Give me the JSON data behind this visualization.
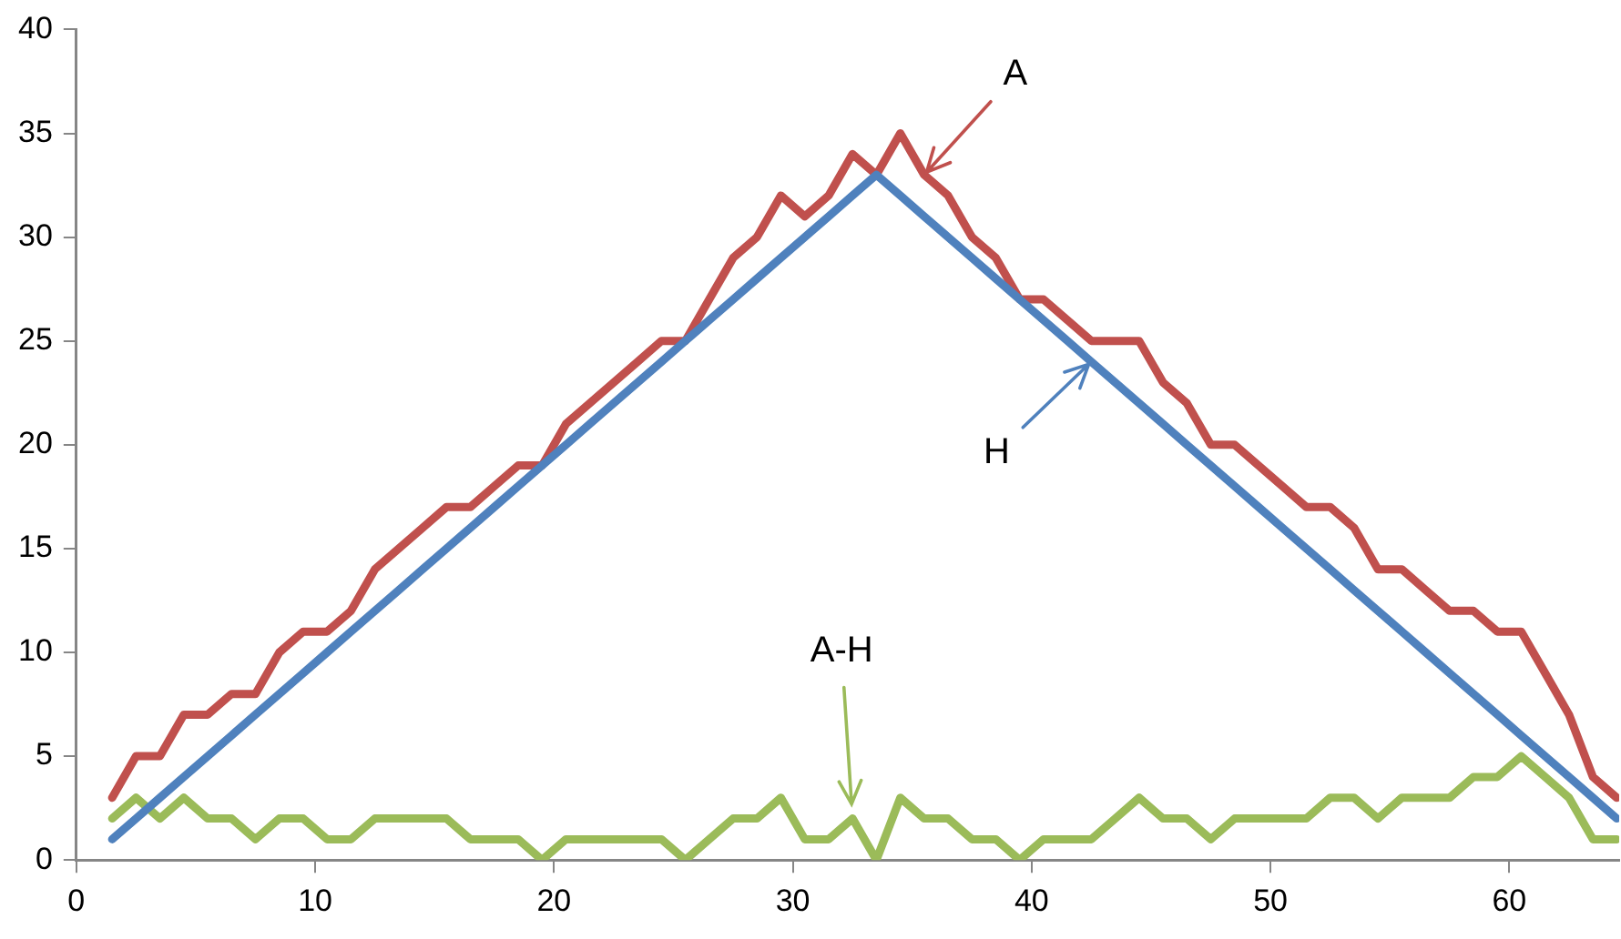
{
  "chart_data": {
    "type": "line",
    "x": [
      1.5,
      2.5,
      3.5,
      4.5,
      5.5,
      6.5,
      7.5,
      8.5,
      9.5,
      10.5,
      11.5,
      12.5,
      13.5,
      14.5,
      15.5,
      16.5,
      17.5,
      18.5,
      19.5,
      20.5,
      21.5,
      22.5,
      23.5,
      24.5,
      25.5,
      26.5,
      27.5,
      28.5,
      29.5,
      30.5,
      31.5,
      32.5,
      33.5,
      34.5,
      35.5,
      36.5,
      37.5,
      38.5,
      39.5,
      40.5,
      41.5,
      42.5,
      43.5,
      44.5,
      45.5,
      46.5,
      47.5,
      48.5,
      49.5,
      50.5,
      51.5,
      52.5,
      53.5,
      54.5,
      55.5,
      56.5,
      57.5,
      58.5,
      59.5,
      60.5,
      61.5,
      62.5,
      63.5,
      64.5
    ],
    "series": [
      {
        "color": "#c0504d",
        "values": [
          3,
          5,
          5,
          7,
          7,
          8,
          8,
          10,
          11,
          11,
          12,
          14,
          15,
          16,
          17,
          17,
          18,
          19,
          19,
          21,
          22,
          23,
          24,
          25,
          25,
          27,
          29,
          30,
          32,
          31,
          32,
          34,
          33,
          35,
          33,
          32,
          30,
          29,
          27,
          27,
          26,
          25,
          25,
          25,
          23,
          22,
          20,
          20,
          19,
          18,
          17,
          17,
          16,
          14,
          14,
          13,
          12,
          12,
          11,
          11,
          9,
          7,
          4,
          3
        ]
      },
      {
        "color": "#4f81bd",
        "values": [
          1,
          2,
          3,
          4,
          5,
          6,
          7,
          8,
          9,
          10,
          11,
          12,
          13,
          14,
          15,
          16,
          17,
          18,
          19,
          20,
          21,
          22,
          23,
          24,
          25,
          26,
          27,
          28,
          29,
          30,
          31,
          32,
          33,
          32,
          31,
          30,
          29,
          28,
          27,
          26,
          25,
          24,
          23,
          22,
          21,
          20,
          19,
          18,
          17,
          16,
          15,
          14,
          13,
          12,
          11,
          10,
          9,
          8,
          7,
          6,
          5,
          4,
          3,
          2
        ]
      },
      {
        "color": "#9bbb59",
        "values": [
          2,
          3,
          2,
          3,
          2,
          2,
          1,
          2,
          2,
          1,
          1,
          2,
          2,
          2,
          2,
          1,
          1,
          1,
          0,
          1,
          1,
          1,
          1,
          1,
          0,
          1,
          2,
          2,
          3,
          1,
          1,
          2,
          0,
          3,
          2,
          2,
          1,
          1,
          0,
          1,
          1,
          1,
          2,
          3,
          2,
          2,
          1,
          2,
          2,
          2,
          2,
          3,
          3,
          2,
          3,
          3,
          3,
          4,
          4,
          5,
          4,
          3,
          1,
          1
        ]
      }
    ],
    "xlim": [
      0,
      64.6
    ],
    "xticks": [
      0,
      10,
      20,
      30,
      40,
      50,
      60
    ],
    "ylim": [
      0,
      40
    ],
    "yticks": [
      0,
      5,
      10,
      15,
      20,
      25,
      30,
      35,
      40
    ],
    "grid": false,
    "legend": false,
    "marker": "none",
    "line_style": "solid",
    "annotations": [
      {
        "text": "A",
        "x": 35.5,
        "y": 33
      },
      {
        "text": "H",
        "x": 42.5,
        "y": 24
      },
      {
        "text": "A-H",
        "x": 32.5,
        "y": 2
      }
    ]
  }
}
